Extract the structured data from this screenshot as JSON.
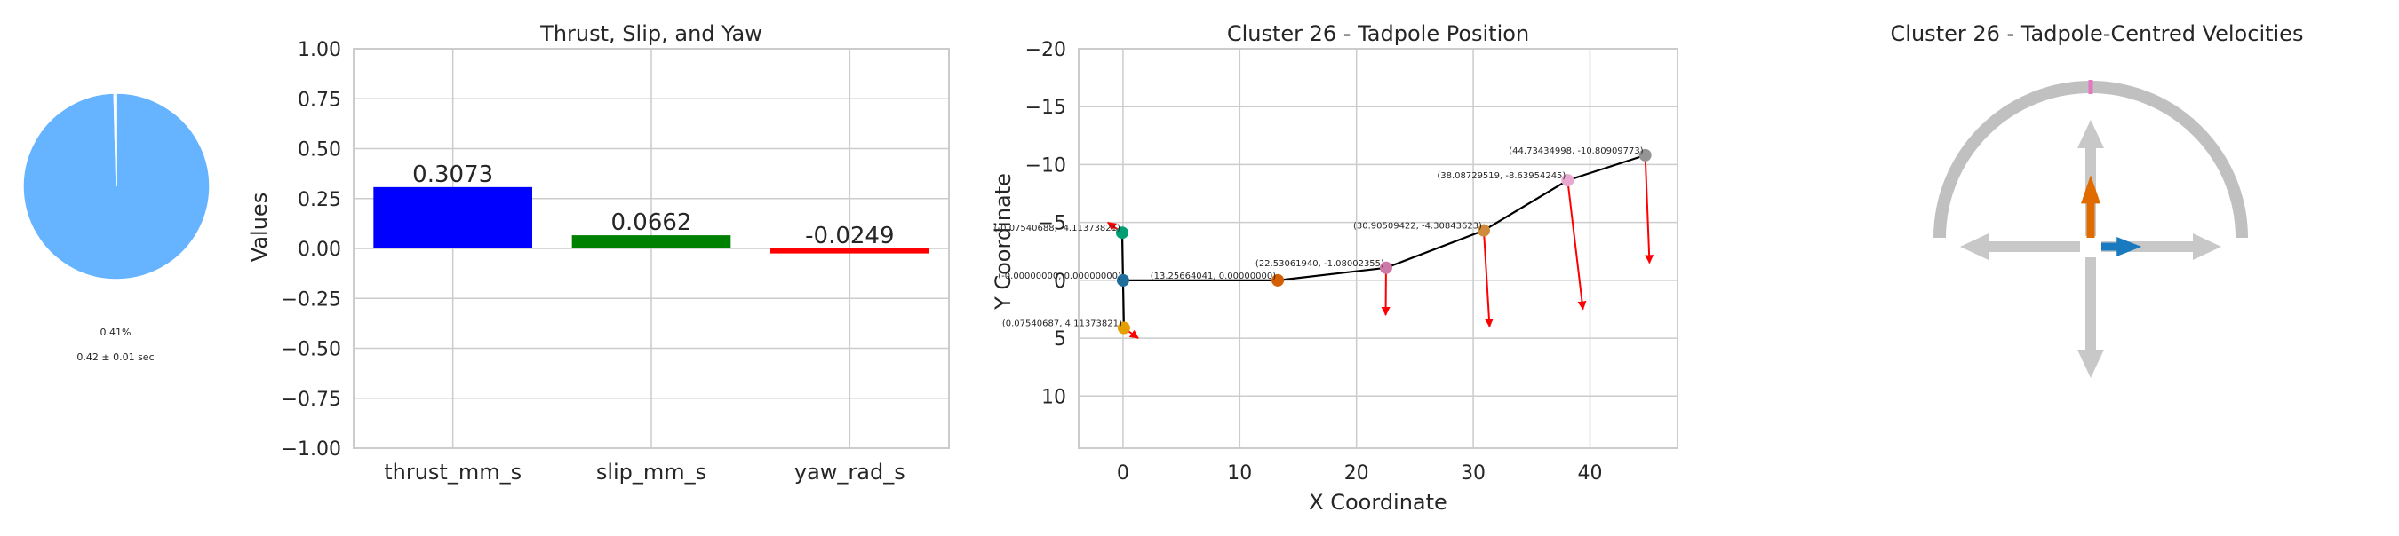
{
  "chart_data": [
    {
      "type": "pie",
      "title": "",
      "slices": [
        {
          "label": "",
          "value": 99.59,
          "color": "#66b3ff"
        },
        {
          "label": "",
          "value": 0.41,
          "color": "#ffffff"
        }
      ],
      "pct_text": "0.41%",
      "time_text": "0.42 ± 0.01 sec"
    },
    {
      "type": "bar",
      "title": "Thrust, Slip, and Yaw",
      "xlabel": "",
      "ylabel": "Values",
      "categories": [
        "thrust_mm_s",
        "slip_mm_s",
        "yaw_rad_s"
      ],
      "values": [
        0.3073,
        0.0662,
        -0.0249
      ],
      "value_labels": [
        "0.3073",
        "0.0662",
        "-0.0249"
      ],
      "colors": [
        "#0000ff",
        "#008000",
        "#ff0000"
      ],
      "ylim": [
        -1.0,
        1.0
      ],
      "yticks": [
        "−1.00",
        "−0.75",
        "−0.50",
        "−0.25",
        "0.00",
        "0.25",
        "0.50",
        "0.75",
        "1.00"
      ],
      "grid": true
    },
    {
      "type": "scatter",
      "title": "Cluster 26 - Tadpole Position",
      "xlabel": "X Coordinate",
      "ylabel": "Y Coordinate",
      "xlim": [
        -3.8,
        47.5
      ],
      "ylim": [
        14.5,
        -20
      ],
      "y_inverted": true,
      "xticks": [
        "0",
        "10",
        "20",
        "30",
        "40"
      ],
      "yticks": [
        "−20",
        "−15",
        "−10",
        "−5",
        "0",
        "5",
        "10"
      ],
      "grid": true,
      "path_points": [
        {
          "x": 0.0754,
          "y": 4.1137,
          "color": "#e69f00",
          "label": "(0.07540687, 4.11373821)"
        },
        {
          "x": 0.0,
          "y": 0.0,
          "color": "#1f6e9c",
          "label": "(-0.00000000, 0.00000000)"
        },
        {
          "x": 13.2566,
          "y": 0.0,
          "color": "#d55e00",
          "label": "(13.25664041, 0.00000000)"
        },
        {
          "x": 22.5306,
          "y": -1.08,
          "color": "#cc79a7",
          "label": "(22.53061940, -1.08002355)"
        },
        {
          "x": 30.9051,
          "y": -4.3084,
          "color": "#d08a3a",
          "label": "(30.90509422, -4.30843623)"
        },
        {
          "x": 38.0873,
          "y": -8.6395,
          "color": "#e8a8cf",
          "label": "(38.08729519, -8.63954245)"
        },
        {
          "x": 44.7343,
          "y": -10.8091,
          "color": "#949494",
          "label": "(44.73434998, -10.80909773)"
        }
      ],
      "extra_point": {
        "x": -0.0754,
        "y": -4.1137,
        "color": "#009e73",
        "label": "(-0.07540688, -4.11373821)"
      },
      "arrows": [
        {
          "x0": 0.0754,
          "y0": 4.1137,
          "x1": 1.3,
          "y1": 5.0
        },
        {
          "x0": -0.0754,
          "y0": -4.1137,
          "x1": -1.3,
          "y1": -5.0
        },
        {
          "x0": 22.5306,
          "y0": -1.08,
          "x1": 22.5,
          "y1": 3.0
        },
        {
          "x0": 30.9051,
          "y0": -4.3084,
          "x1": 31.4,
          "y1": 4.0
        },
        {
          "x0": 38.0873,
          "y0": -8.6395,
          "x1": 39.4,
          "y1": 2.5
        },
        {
          "x0": 44.7343,
          "y0": -10.8091,
          "x1": 45.1,
          "y1": -1.5
        }
      ]
    },
    {
      "type": "other",
      "title": "Cluster 26 - Tadpole-Centred Velocities",
      "arc_color": "#c0c0c0",
      "axis_arrow_color": "#c8c8c8",
      "thrust_arrow_color": "#e06c00",
      "slip_arrow_color": "#1a7abf",
      "marker_color": "#e377c2",
      "thrust": 0.3073,
      "slip": 0.0662
    }
  ]
}
